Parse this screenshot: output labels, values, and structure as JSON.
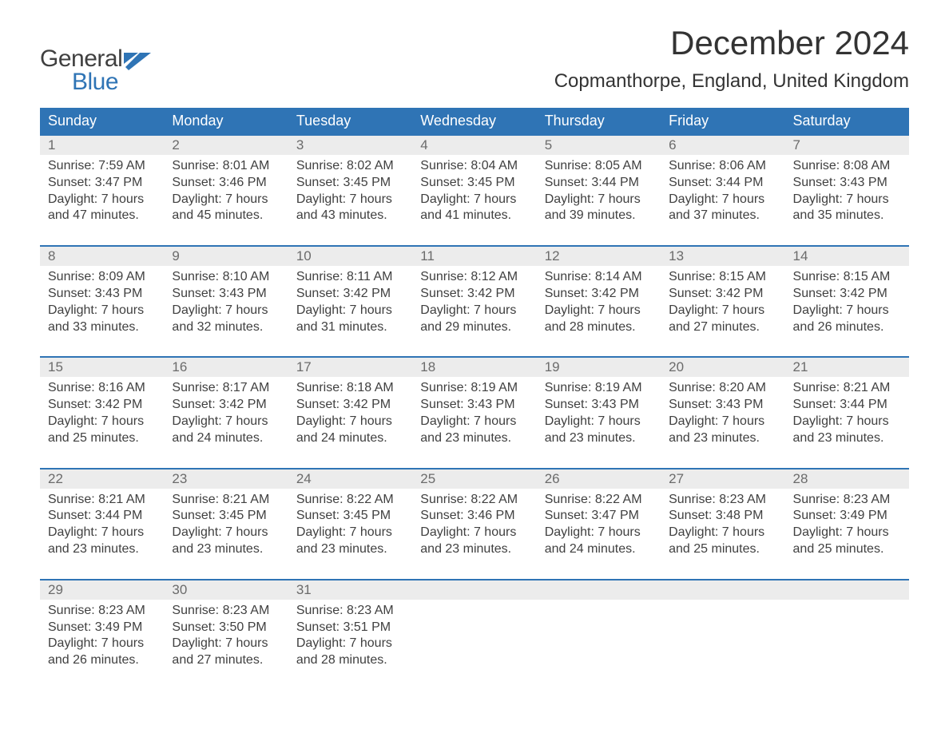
{
  "logo": {
    "word1": "General",
    "word2": "Blue",
    "flag_color": "#2f74b5"
  },
  "title": "December 2024",
  "location": "Copmanthorpe, England, United Kingdom",
  "colors": {
    "header_bg": "#2f74b5",
    "header_text": "#ffffff",
    "daynum_bg": "#ececec",
    "daynum_text": "#6b6b6b",
    "body_text": "#404040",
    "week_border": "#2f74b5"
  },
  "weekdays": [
    "Sunday",
    "Monday",
    "Tuesday",
    "Wednesday",
    "Thursday",
    "Friday",
    "Saturday"
  ],
  "weeks": [
    [
      {
        "n": "1",
        "sr": "Sunrise: 7:59 AM",
        "ss": "Sunset: 3:47 PM",
        "d1": "Daylight: 7 hours",
        "d2": "and 47 minutes."
      },
      {
        "n": "2",
        "sr": "Sunrise: 8:01 AM",
        "ss": "Sunset: 3:46 PM",
        "d1": "Daylight: 7 hours",
        "d2": "and 45 minutes."
      },
      {
        "n": "3",
        "sr": "Sunrise: 8:02 AM",
        "ss": "Sunset: 3:45 PM",
        "d1": "Daylight: 7 hours",
        "d2": "and 43 minutes."
      },
      {
        "n": "4",
        "sr": "Sunrise: 8:04 AM",
        "ss": "Sunset: 3:45 PM",
        "d1": "Daylight: 7 hours",
        "d2": "and 41 minutes."
      },
      {
        "n": "5",
        "sr": "Sunrise: 8:05 AM",
        "ss": "Sunset: 3:44 PM",
        "d1": "Daylight: 7 hours",
        "d2": "and 39 minutes."
      },
      {
        "n": "6",
        "sr": "Sunrise: 8:06 AM",
        "ss": "Sunset: 3:44 PM",
        "d1": "Daylight: 7 hours",
        "d2": "and 37 minutes."
      },
      {
        "n": "7",
        "sr": "Sunrise: 8:08 AM",
        "ss": "Sunset: 3:43 PM",
        "d1": "Daylight: 7 hours",
        "d2": "and 35 minutes."
      }
    ],
    [
      {
        "n": "8",
        "sr": "Sunrise: 8:09 AM",
        "ss": "Sunset: 3:43 PM",
        "d1": "Daylight: 7 hours",
        "d2": "and 33 minutes."
      },
      {
        "n": "9",
        "sr": "Sunrise: 8:10 AM",
        "ss": "Sunset: 3:43 PM",
        "d1": "Daylight: 7 hours",
        "d2": "and 32 minutes."
      },
      {
        "n": "10",
        "sr": "Sunrise: 8:11 AM",
        "ss": "Sunset: 3:42 PM",
        "d1": "Daylight: 7 hours",
        "d2": "and 31 minutes."
      },
      {
        "n": "11",
        "sr": "Sunrise: 8:12 AM",
        "ss": "Sunset: 3:42 PM",
        "d1": "Daylight: 7 hours",
        "d2": "and 29 minutes."
      },
      {
        "n": "12",
        "sr": "Sunrise: 8:14 AM",
        "ss": "Sunset: 3:42 PM",
        "d1": "Daylight: 7 hours",
        "d2": "and 28 minutes."
      },
      {
        "n": "13",
        "sr": "Sunrise: 8:15 AM",
        "ss": "Sunset: 3:42 PM",
        "d1": "Daylight: 7 hours",
        "d2": "and 27 minutes."
      },
      {
        "n": "14",
        "sr": "Sunrise: 8:15 AM",
        "ss": "Sunset: 3:42 PM",
        "d1": "Daylight: 7 hours",
        "d2": "and 26 minutes."
      }
    ],
    [
      {
        "n": "15",
        "sr": "Sunrise: 8:16 AM",
        "ss": "Sunset: 3:42 PM",
        "d1": "Daylight: 7 hours",
        "d2": "and 25 minutes."
      },
      {
        "n": "16",
        "sr": "Sunrise: 8:17 AM",
        "ss": "Sunset: 3:42 PM",
        "d1": "Daylight: 7 hours",
        "d2": "and 24 minutes."
      },
      {
        "n": "17",
        "sr": "Sunrise: 8:18 AM",
        "ss": "Sunset: 3:42 PM",
        "d1": "Daylight: 7 hours",
        "d2": "and 24 minutes."
      },
      {
        "n": "18",
        "sr": "Sunrise: 8:19 AM",
        "ss": "Sunset: 3:43 PM",
        "d1": "Daylight: 7 hours",
        "d2": "and 23 minutes."
      },
      {
        "n": "19",
        "sr": "Sunrise: 8:19 AM",
        "ss": "Sunset: 3:43 PM",
        "d1": "Daylight: 7 hours",
        "d2": "and 23 minutes."
      },
      {
        "n": "20",
        "sr": "Sunrise: 8:20 AM",
        "ss": "Sunset: 3:43 PM",
        "d1": "Daylight: 7 hours",
        "d2": "and 23 minutes."
      },
      {
        "n": "21",
        "sr": "Sunrise: 8:21 AM",
        "ss": "Sunset: 3:44 PM",
        "d1": "Daylight: 7 hours",
        "d2": "and 23 minutes."
      }
    ],
    [
      {
        "n": "22",
        "sr": "Sunrise: 8:21 AM",
        "ss": "Sunset: 3:44 PM",
        "d1": "Daylight: 7 hours",
        "d2": "and 23 minutes."
      },
      {
        "n": "23",
        "sr": "Sunrise: 8:21 AM",
        "ss": "Sunset: 3:45 PM",
        "d1": "Daylight: 7 hours",
        "d2": "and 23 minutes."
      },
      {
        "n": "24",
        "sr": "Sunrise: 8:22 AM",
        "ss": "Sunset: 3:45 PM",
        "d1": "Daylight: 7 hours",
        "d2": "and 23 minutes."
      },
      {
        "n": "25",
        "sr": "Sunrise: 8:22 AM",
        "ss": "Sunset: 3:46 PM",
        "d1": "Daylight: 7 hours",
        "d2": "and 23 minutes."
      },
      {
        "n": "26",
        "sr": "Sunrise: 8:22 AM",
        "ss": "Sunset: 3:47 PM",
        "d1": "Daylight: 7 hours",
        "d2": "and 24 minutes."
      },
      {
        "n": "27",
        "sr": "Sunrise: 8:23 AM",
        "ss": "Sunset: 3:48 PM",
        "d1": "Daylight: 7 hours",
        "d2": "and 25 minutes."
      },
      {
        "n": "28",
        "sr": "Sunrise: 8:23 AM",
        "ss": "Sunset: 3:49 PM",
        "d1": "Daylight: 7 hours",
        "d2": "and 25 minutes."
      }
    ],
    [
      {
        "n": "29",
        "sr": "Sunrise: 8:23 AM",
        "ss": "Sunset: 3:49 PM",
        "d1": "Daylight: 7 hours",
        "d2": "and 26 minutes."
      },
      {
        "n": "30",
        "sr": "Sunrise: 8:23 AM",
        "ss": "Sunset: 3:50 PM",
        "d1": "Daylight: 7 hours",
        "d2": "and 27 minutes."
      },
      {
        "n": "31",
        "sr": "Sunrise: 8:23 AM",
        "ss": "Sunset: 3:51 PM",
        "d1": "Daylight: 7 hours",
        "d2": "and 28 minutes."
      },
      {
        "empty": true
      },
      {
        "empty": true
      },
      {
        "empty": true
      },
      {
        "empty": true
      }
    ]
  ]
}
